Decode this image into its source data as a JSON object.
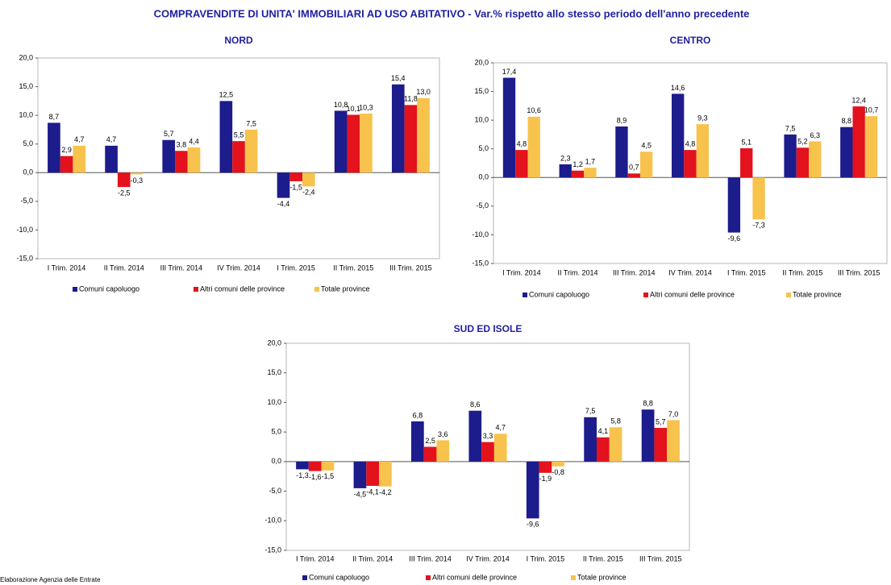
{
  "title": "COMPRAVENDITE DI UNITA' IMMOBILIARI AD USO ABITATIVO - Var.% rispetto allo stesso periodo dell'anno precedente",
  "source": "Elaborazione Agenzia delle Entrate",
  "chart_data": [
    {
      "type": "bar",
      "title": "NORD",
      "categories": [
        "I Trim. 2014",
        "II Trim. 2014",
        "III Trim. 2014",
        "IV Trim. 2014",
        "I Trim. 2015",
        "II Trim. 2015",
        "III Trim. 2015"
      ],
      "series": [
        {
          "name": "Comuni capoluogo",
          "color": "#1c1c8c",
          "values": [
            8.7,
            4.7,
            5.7,
            12.5,
            -4.4,
            10.8,
            15.4
          ],
          "value_labels": [
            "8,7",
            "4,7",
            "5,7",
            "12,5",
            "-4,4",
            "10,8",
            "15,4"
          ]
        },
        {
          "name": "Altri comuni delle province",
          "color": "#e3121c",
          "values": [
            2.9,
            -2.5,
            3.8,
            5.5,
            -1.5,
            10.1,
            11.8
          ],
          "value_labels": [
            "2,9",
            "-2,5",
            "3,8",
            "5,5",
            "-1,5",
            "10,1",
            "11,8"
          ]
        },
        {
          "name": "Totale province",
          "color": "#f7c34c",
          "values": [
            4.7,
            -0.3,
            4.4,
            7.5,
            -2.4,
            10.3,
            13.0
          ],
          "value_labels": [
            "4,7",
            "-0,3",
            "4,4",
            "7,5",
            "-2,4",
            "10,3",
            "13,0"
          ]
        }
      ],
      "ylim": [
        -15,
        20
      ],
      "yticks": [
        {
          "value": -15,
          "label": "-15,0"
        },
        {
          "value": -10,
          "label": "-10,0"
        },
        {
          "value": -5,
          "label": "-5,0"
        },
        {
          "value": 0,
          "label": "0,0"
        },
        {
          "value": 5,
          "label": "5,0"
        },
        {
          "value": 10,
          "label": "10,0"
        },
        {
          "value": 15,
          "label": "15,0"
        },
        {
          "value": 20,
          "label": "20,0"
        }
      ]
    },
    {
      "type": "bar",
      "title": "CENTRO",
      "categories": [
        "I Trim. 2014",
        "II Trim. 2014",
        "III Trim. 2014",
        "IV Trim. 2014",
        "I Trim. 2015",
        "II Trim. 2015",
        "III Trim. 2015"
      ],
      "series": [
        {
          "name": "Comuni capoluogo",
          "color": "#1c1c8c",
          "values": [
            17.4,
            2.3,
            8.9,
            14.6,
            -9.6,
            7.5,
            8.8
          ],
          "value_labels": [
            "17,4",
            "2,3",
            "8,9",
            "14,6",
            "-9,6",
            "7,5",
            "8,8"
          ]
        },
        {
          "name": "Altri comuni delle province",
          "color": "#e3121c",
          "values": [
            4.8,
            1.2,
            0.7,
            4.8,
            5.1,
            5.2,
            12.4
          ],
          "value_labels": [
            "4,8",
            "1,2",
            "0,7",
            "4,8",
            "5,1",
            "5,2",
            "12,4"
          ]
        },
        {
          "name": "Totale province",
          "color": "#f7c34c",
          "values": [
            10.6,
            1.7,
            4.5,
            9.3,
            -7.3,
            6.3,
            10.7
          ],
          "value_labels": [
            "10,6",
            "1,7",
            "4,5",
            "9,3",
            "-7,3",
            "6,3",
            "10,7"
          ]
        }
      ],
      "ylim": [
        -15,
        20
      ],
      "yticks": [
        {
          "value": -15,
          "label": "-15,0"
        },
        {
          "value": -10,
          "label": "-10,0"
        },
        {
          "value": -5,
          "label": "-5,0"
        },
        {
          "value": 0,
          "label": "0,0"
        },
        {
          "value": 5,
          "label": "5,0"
        },
        {
          "value": 10,
          "label": "10,0"
        },
        {
          "value": 15,
          "label": "15,0"
        },
        {
          "value": 20,
          "label": "20,0"
        }
      ]
    },
    {
      "type": "bar",
      "title": "SUD ED ISOLE",
      "categories": [
        "I Trim. 2014",
        "II Trim. 2014",
        "III Trim. 2014",
        "IV Trim. 2014",
        "I Trim. 2015",
        "II Trim. 2015",
        "III Trim. 2015"
      ],
      "series": [
        {
          "name": "Comuni capoluogo",
          "color": "#1c1c8c",
          "values": [
            -1.3,
            -4.5,
            6.8,
            8.6,
            -9.6,
            7.5,
            8.8
          ],
          "value_labels": [
            "-1,3",
            "-4,5",
            "6,8",
            "8,6",
            "-9,6",
            "7,5",
            "8,8"
          ]
        },
        {
          "name": "Altri comuni delle province",
          "color": "#e3121c",
          "values": [
            -1.6,
            -4.1,
            2.5,
            3.3,
            -1.9,
            4.1,
            5.7
          ],
          "value_labels": [
            "-1,6",
            "-4,1",
            "2,5",
            "3,3",
            "-1,9",
            "4,1",
            "5,7"
          ]
        },
        {
          "name": "Totale province",
          "color": "#f7c34c",
          "values": [
            -1.5,
            -4.2,
            3.6,
            4.7,
            -0.8,
            5.8,
            7.0
          ],
          "value_labels": [
            "-1,5",
            "-4,2",
            "3,6",
            "4,7",
            "-0,8",
            "5,8",
            "7,0"
          ]
        }
      ],
      "ylim": [
        -15,
        20
      ],
      "yticks": [
        {
          "value": -15,
          "label": "-15,0"
        },
        {
          "value": -10,
          "label": "-10,0"
        },
        {
          "value": -5,
          "label": "-5,0"
        },
        {
          "value": 0,
          "label": "0,0"
        },
        {
          "value": 5,
          "label": "5,0"
        },
        {
          "value": 10,
          "label": "10,0"
        },
        {
          "value": 15,
          "label": "15,0"
        },
        {
          "value": 20,
          "label": "20,0"
        }
      ]
    }
  ]
}
